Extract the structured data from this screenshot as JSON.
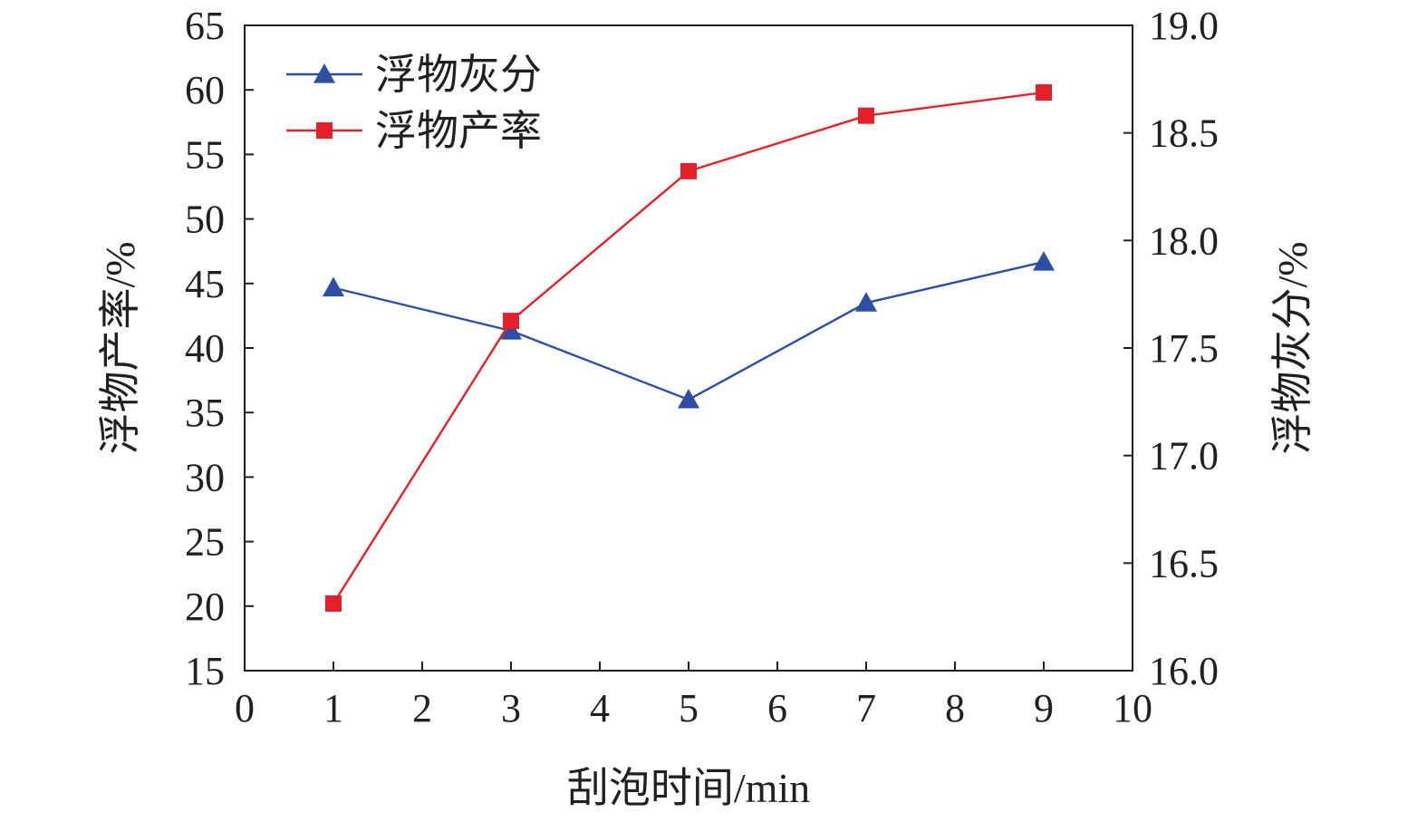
{
  "chart_data": {
    "type": "line",
    "xlabel": "刮泡时间/min",
    "ylabel_left": "浮物产率/%",
    "ylabel_right": "浮物灰分/%",
    "xlim": [
      0,
      10
    ],
    "x_ticks": [
      "0",
      "1",
      "2",
      "3",
      "4",
      "5",
      "6",
      "7",
      "8",
      "9",
      "10"
    ],
    "ylim_left": [
      15,
      65
    ],
    "y_ticks_left": [
      "15",
      "20",
      "25",
      "30",
      "35",
      "40",
      "45",
      "50",
      "55",
      "60",
      "65"
    ],
    "ylim_right": [
      16.0,
      19.0
    ],
    "y_ticks_right": [
      "16.0",
      "16.5",
      "17.0",
      "17.5",
      "18.0",
      "18.5",
      "19.0"
    ],
    "grid": false,
    "legend_position": "top-left",
    "series": [
      {
        "name": "浮物灰分",
        "axis": "right",
        "marker": "triangle",
        "color": "#2e4ea3",
        "x": [
          1,
          3,
          5,
          7,
          9
        ],
        "values": [
          17.78,
          17.58,
          17.26,
          17.71,
          17.9
        ]
      },
      {
        "name": "浮物产率",
        "axis": "left",
        "marker": "square",
        "color": "#e4202b",
        "x": [
          1,
          3,
          5,
          7,
          9
        ],
        "values": [
          20.2,
          42.1,
          53.7,
          58.0,
          59.8
        ]
      }
    ]
  }
}
